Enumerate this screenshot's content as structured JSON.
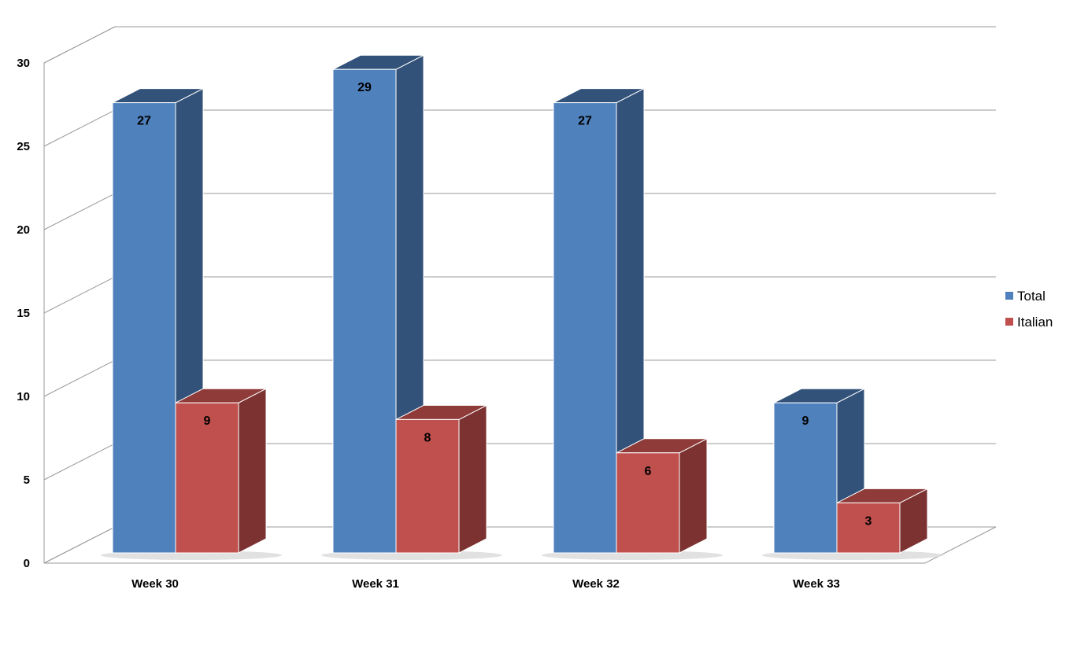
{
  "chart_data": {
    "type": "bar",
    "categories": [
      "Week 30",
      "Week 31",
      "Week 32",
      "Week 33"
    ],
    "series": [
      {
        "name": "Total",
        "values": [
          27,
          29,
          27,
          9
        ],
        "color": "#4F81BD",
        "side_color": "#33527A",
        "top_color": "#33527A"
      },
      {
        "name": "Italian",
        "values": [
          9,
          8,
          6,
          3
        ],
        "color": "#C0504D",
        "side_color": "#7B3231",
        "top_color": "#8E3B39"
      }
    ],
    "ylim": [
      0,
      30
    ],
    "yticks": [
      0,
      5,
      10,
      15,
      20,
      25,
      30
    ],
    "grid": true,
    "legend_position": "right",
    "three_d": true
  }
}
